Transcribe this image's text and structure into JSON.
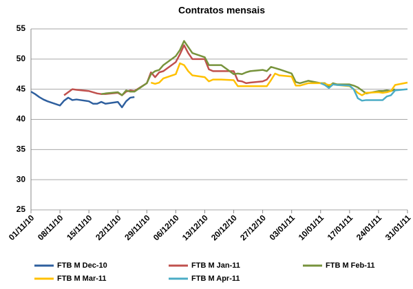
{
  "chart_data": {
    "type": "line",
    "title": "Contratos mensais",
    "xlim": [
      "2010-11-01",
      "2011-01-31"
    ],
    "xticks": [
      {
        "value": "2010-11-01",
        "label": "01/11/10"
      },
      {
        "value": "2010-11-08",
        "label": "08/11/10"
      },
      {
        "value": "2010-11-15",
        "label": "15/11/10"
      },
      {
        "value": "2010-11-22",
        "label": "22/11/10"
      },
      {
        "value": "2010-11-29",
        "label": "29/11/10"
      },
      {
        "value": "2010-12-06",
        "label": "06/12/10"
      },
      {
        "value": "2010-12-13",
        "label": "13/12/10"
      },
      {
        "value": "2010-12-20",
        "label": "20/12/10"
      },
      {
        "value": "2010-12-27",
        "label": "27/12/10"
      },
      {
        "value": "2011-01-03",
        "label": "03/01/11"
      },
      {
        "value": "2011-01-10",
        "label": "10/01/11"
      },
      {
        "value": "2011-01-17",
        "label": "17/01/11"
      },
      {
        "value": "2011-01-24",
        "label": "24/01/11"
      },
      {
        "value": "2011-01-31",
        "label": "31/01/11"
      }
    ],
    "ylim": [
      25,
      55
    ],
    "yticks": [
      25,
      30,
      35,
      40,
      45,
      50,
      55
    ],
    "grid": true,
    "legend": "bottom",
    "series": [
      {
        "name": "FTB M Dec-10",
        "color": "#2e5f9e",
        "x": [
          "2010-11-01",
          "2010-11-02",
          "2010-11-03",
          "2010-11-04",
          "2010-11-05",
          "2010-11-08",
          "2010-11-09",
          "2010-11-10",
          "2010-11-11",
          "2010-11-12",
          "2010-11-15",
          "2010-11-16",
          "2010-11-17",
          "2010-11-18",
          "2010-11-19",
          "2010-11-22",
          "2010-11-23",
          "2010-11-24",
          "2010-11-25",
          "2010-11-26"
        ],
        "values": [
          44.6,
          44.2,
          43.7,
          43.3,
          43.0,
          42.3,
          43.1,
          43.6,
          43.2,
          43.3,
          43.0,
          42.6,
          42.6,
          42.9,
          42.6,
          42.9,
          42.0,
          43.0,
          43.6,
          43.7
        ]
      },
      {
        "name": "FTB M Jan-11",
        "color": "#c0504d",
        "x": [
          "2010-11-09",
          "2010-11-10",
          "2010-11-11",
          "2010-11-12",
          "2010-11-15",
          "2010-11-16",
          "2010-11-17",
          "2010-11-18",
          "2010-11-19",
          "2010-11-22",
          "2010-11-23",
          "2010-11-24",
          "2010-11-25",
          "2010-11-26",
          "2010-11-29",
          "2010-11-30",
          "2010-12-01",
          "2010-12-02",
          "2010-12-03",
          "2010-12-06",
          "2010-12-07",
          "2010-12-08",
          "2010-12-09",
          "2010-12-10",
          "2010-12-13",
          "2010-12-14",
          "2010-12-15",
          "2010-12-16",
          "2010-12-17",
          "2010-12-20",
          "2010-12-21",
          "2010-12-22",
          "2010-12-23",
          "2010-12-24",
          "2010-12-27",
          "2010-12-28",
          "2010-12-29"
        ],
        "values": [
          44.0,
          44.5,
          45.0,
          44.9,
          44.7,
          44.5,
          44.3,
          44.2,
          44.2,
          44.4,
          44.0,
          44.6,
          44.8,
          44.7,
          46.0,
          47.8,
          47.0,
          47.8,
          48.0,
          49.5,
          50.8,
          52.3,
          51.0,
          50.0,
          50.0,
          48.3,
          48.0,
          48.0,
          48.0,
          48.0,
          46.4,
          46.3,
          46.0,
          46.1,
          46.3,
          46.6,
          47.5
        ]
      },
      {
        "name": "FTB M Feb-11",
        "color": "#77933c",
        "x": [
          "2010-11-18",
          "2010-11-19",
          "2010-11-22",
          "2010-11-23",
          "2010-11-24",
          "2010-11-25",
          "2010-11-26",
          "2010-11-29",
          "2010-11-30",
          "2010-12-01",
          "2010-12-02",
          "2010-12-03",
          "2010-12-06",
          "2010-12-07",
          "2010-12-08",
          "2010-12-09",
          "2010-12-10",
          "2010-12-13",
          "2010-12-14",
          "2010-12-15",
          "2010-12-16",
          "2010-12-17",
          "2010-12-20",
          "2010-12-21",
          "2010-12-22",
          "2010-12-23",
          "2010-12-24",
          "2010-12-27",
          "2010-12-28",
          "2010-12-29",
          "2010-12-30",
          "2010-12-31",
          "2011-01-03",
          "2011-01-04",
          "2011-01-05",
          "2011-01-06",
          "2011-01-07",
          "2011-01-10",
          "2011-01-11",
          "2011-01-12",
          "2011-01-13",
          "2011-01-14",
          "2011-01-17",
          "2011-01-18",
          "2011-01-19",
          "2011-01-20",
          "2011-01-21",
          "2011-01-24",
          "2011-01-25",
          "2011-01-26",
          "2011-01-27",
          "2011-01-28"
        ],
        "values": [
          44.2,
          44.3,
          44.5,
          44.0,
          44.8,
          44.6,
          44.6,
          46.0,
          47.5,
          48.0,
          48.2,
          49.0,
          50.5,
          51.5,
          53.0,
          52.0,
          51.0,
          50.3,
          49.0,
          49.0,
          49.0,
          49.0,
          47.5,
          47.6,
          47.5,
          47.8,
          48.0,
          48.2,
          48.0,
          48.7,
          48.5,
          48.3,
          47.6,
          46.2,
          46.0,
          46.2,
          46.4,
          46.0,
          46.0,
          45.5,
          46.0,
          45.8,
          45.8,
          45.6,
          45.3,
          44.8,
          44.3,
          44.7,
          44.7,
          44.8,
          44.7,
          45.0
        ]
      },
      {
        "name": "FTB M Mar-11",
        "color": "#ffc000",
        "x": [
          "2010-11-30",
          "2010-12-01",
          "2010-12-02",
          "2010-12-03",
          "2010-12-06",
          "2010-12-07",
          "2010-12-08",
          "2010-12-09",
          "2010-12-10",
          "2010-12-13",
          "2010-12-14",
          "2010-12-15",
          "2010-12-16",
          "2010-12-17",
          "2010-12-20",
          "2010-12-21",
          "2010-12-22",
          "2010-12-23",
          "2010-12-24",
          "2010-12-27",
          "2010-12-28",
          "2010-12-29",
          "2010-12-30",
          "2010-12-31",
          "2011-01-03",
          "2011-01-04",
          "2011-01-05",
          "2011-01-06",
          "2011-01-07",
          "2011-01-10",
          "2011-01-11",
          "2011-01-12",
          "2011-01-13",
          "2011-01-14",
          "2011-01-17",
          "2011-01-18",
          "2011-01-19",
          "2011-01-20",
          "2011-01-21",
          "2011-01-24",
          "2011-01-25",
          "2011-01-26",
          "2011-01-27",
          "2011-01-28",
          "2011-01-31"
        ],
        "values": [
          46.1,
          45.9,
          46.1,
          46.8,
          47.5,
          49.3,
          49.0,
          48.0,
          47.3,
          47.0,
          46.3,
          46.6,
          46.6,
          46.6,
          46.5,
          45.5,
          45.5,
          45.5,
          45.5,
          45.5,
          45.5,
          46.5,
          47.6,
          47.3,
          47.1,
          45.6,
          45.6,
          45.8,
          46.0,
          46.0,
          45.9,
          45.7,
          45.8,
          45.7,
          45.5,
          45.0,
          44.4,
          44.0,
          44.4,
          44.5,
          44.4,
          44.5,
          44.7,
          45.7,
          46.1
        ]
      },
      {
        "name": "FTB M Apr-11",
        "color": "#4bacc6",
        "x": [
          "2011-01-10",
          "2011-01-11",
          "2011-01-12",
          "2011-01-13",
          "2011-01-14",
          "2011-01-17",
          "2011-01-18",
          "2011-01-19",
          "2011-01-20",
          "2011-01-21",
          "2011-01-24",
          "2011-01-25",
          "2011-01-26",
          "2011-01-27",
          "2011-01-28",
          "2011-01-31"
        ],
        "values": [
          46.0,
          45.7,
          45.2,
          45.8,
          45.7,
          45.6,
          45.0,
          43.5,
          43.1,
          43.2,
          43.2,
          43.2,
          43.8,
          44.0,
          44.8,
          45.0
        ]
      }
    ]
  }
}
